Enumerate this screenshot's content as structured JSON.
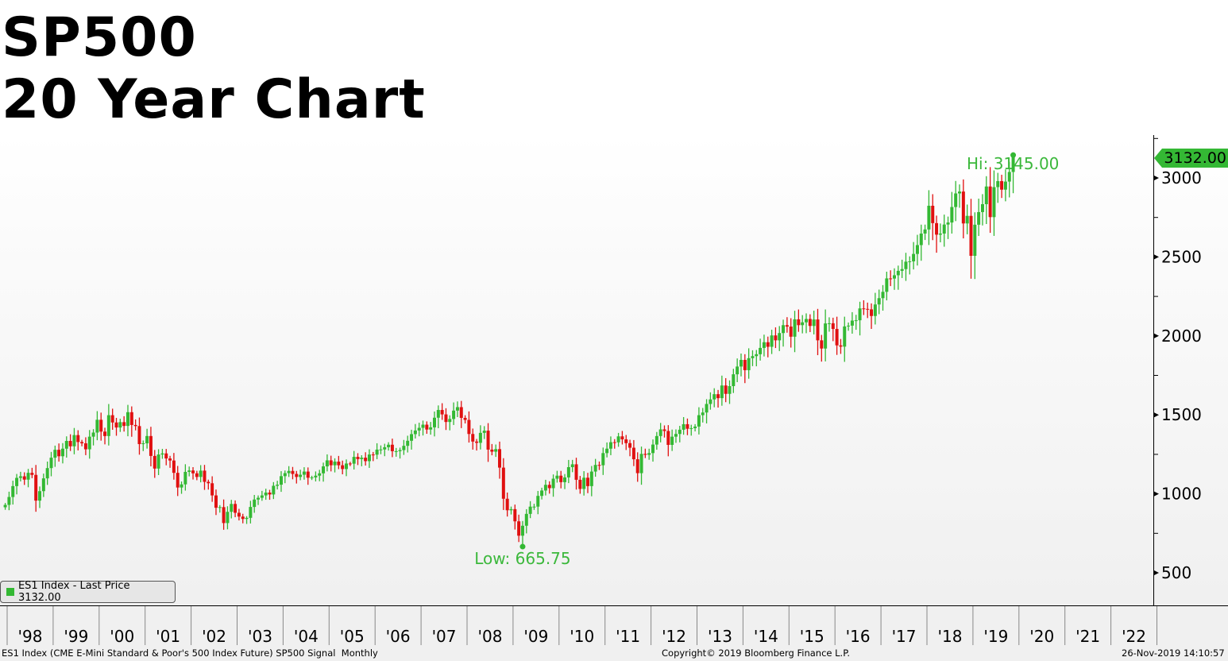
{
  "title": {
    "line1": "SP500",
    "line2": "20 Year Chart"
  },
  "legend": {
    "label": "ES1 Index - Last Price 3132.00",
    "color": "#33b833"
  },
  "last_price_tag": "3132.00",
  "footer": {
    "left": "ES1 Index (CME E-Mini Standard & Poor's 500 Index Future) SP500 Signal  Monthly",
    "center": "Copyright© 2019 Bloomberg Finance L.P.",
    "right": "26-Nov-2019 14:10:57"
  },
  "chart_data": {
    "type": "candlestick",
    "frequency": "monthly",
    "start": "1997-12",
    "first_open": 915,
    "up_color": "#33b833",
    "down_color": "#e01010",
    "ylim": [
      400,
      3250
    ],
    "yticks": [
      500,
      1000,
      1500,
      2000,
      2500,
      3000
    ],
    "ytick_labels": [
      "500",
      "1000",
      "1500",
      "2000",
      "2500",
      "3000"
    ],
    "xtick_labels": [
      "'98",
      "'99",
      "'00",
      "'01",
      "'02",
      "'03",
      "'04",
      "'05",
      "'06",
      "'07",
      "'08",
      "'09",
      "'10",
      "'11",
      "'12",
      "'13",
      "'14",
      "'15",
      "'16",
      "'17",
      "'18",
      "'19",
      "'20",
      "'21",
      "'22"
    ],
    "closes": [
      930,
      980,
      1049,
      1101,
      1111,
      1090,
      1133,
      1120,
      957,
      1017,
      1098,
      1163,
      1229,
      1279,
      1238,
      1286,
      1335,
      1301,
      1372,
      1328,
      1320,
      1282,
      1362,
      1388,
      1469,
      1394,
      1366,
      1498,
      1452,
      1420,
      1454,
      1430,
      1517,
      1436,
      1429,
      1315,
      1320,
      1366,
      1240,
      1160,
      1249,
      1256,
      1224,
      1211,
      1133,
      1040,
      1060,
      1139,
      1148,
      1130,
      1107,
      1147,
      1076,
      1067,
      990,
      912,
      916,
      815,
      886,
      936,
      880,
      856,
      841,
      848,
      917,
      964,
      975,
      990,
      1008,
      996,
      1051,
      1058,
      1112,
      1131,
      1145,
      1126,
      1107,
      1121,
      1141,
      1102,
      1104,
      1115,
      1130,
      1174,
      1212,
      1181,
      1204,
      1181,
      1157,
      1192,
      1191,
      1234,
      1220,
      1229,
      1207,
      1249,
      1248,
      1280,
      1281,
      1295,
      1311,
      1270,
      1270,
      1277,
      1304,
      1336,
      1378,
      1401,
      1418,
      1438,
      1407,
      1421,
      1482,
      1531,
      1503,
      1455,
      1474,
      1527,
      1549,
      1481,
      1468,
      1379,
      1331,
      1323,
      1386,
      1400,
      1280,
      1267,
      1283,
      1166,
      969,
      896,
      903,
      826,
      735,
      798,
      873,
      919,
      919,
      987,
      1021,
      1057,
      1036,
      1096,
      1115,
      1074,
      1104,
      1169,
      1187,
      1089,
      1031,
      1102,
      1049,
      1141,
      1183,
      1181,
      1258,
      1286,
      1327,
      1326,
      1364,
      1345,
      1321,
      1292,
      1219,
      1131,
      1253,
      1247,
      1258,
      1312,
      1366,
      1408,
      1398,
      1310,
      1362,
      1379,
      1406,
      1441,
      1412,
      1416,
      1426,
      1498,
      1515,
      1569,
      1598,
      1631,
      1606,
      1686,
      1633,
      1682,
      1757,
      1806,
      1848,
      1783,
      1859,
      1872,
      1884,
      1924,
      1960,
      1931,
      2003,
      1972,
      2018,
      2068,
      2059,
      1995,
      2105,
      2068,
      2086,
      2107,
      2063,
      2104,
      1972,
      1920,
      2079,
      2080,
      2044,
      1940,
      1932,
      2060,
      2065,
      2097,
      2099,
      2174,
      2171,
      2168,
      2126,
      2199,
      2239,
      2279,
      2364,
      2363,
      2384,
      2412,
      2423,
      2470,
      2472,
      2519,
      2575,
      2648,
      2674,
      2824,
      2714,
      2641,
      2648,
      2705,
      2718,
      2816,
      2902,
      2914,
      2712,
      2760,
      2507,
      2704,
      2784,
      2834,
      2946,
      2752,
      2942,
      2980,
      2926,
      2977,
      3038,
      3132
    ],
    "annotations": {
      "high": {
        "label": "Hi: 3145.00",
        "value": 3145.0,
        "date": "2019-11"
      },
      "low": {
        "label": "Low: 665.75",
        "value": 665.75,
        "date": "2009-03"
      }
    },
    "last_price": 3132.0
  }
}
